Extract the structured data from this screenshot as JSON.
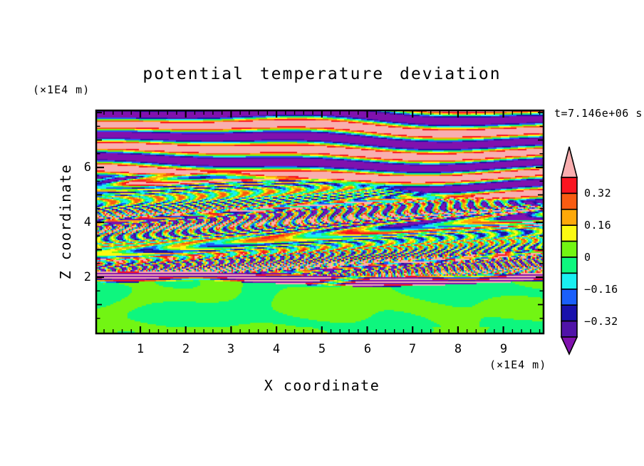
{
  "chart_data": {
    "type": "heatmap",
    "title": "potential temperature deviation",
    "xlabel": "X coordinate",
    "ylabel": "Z coordinate",
    "x_units_label": "(×1E4 m)",
    "y_units_label": "(×1E4 m)",
    "time_annotation": "t=7.146e+06 s",
    "xlim": [
      0,
      9.9
    ],
    "ylim": [
      0,
      8.1
    ],
    "x_major_ticks": [
      1,
      2,
      3,
      4,
      5,
      6,
      7,
      8,
      9
    ],
    "x_minor_step": 0.2,
    "y_major_ticks": [
      2,
      4,
      6
    ],
    "y_minor_step": 0.5,
    "grid": false,
    "legend_position": "right-colorbar",
    "colorbar": {
      "orientation": "vertical",
      "levels": [
        -0.4,
        -0.32,
        -0.24,
        -0.16,
        -0.08,
        0,
        0.08,
        0.16,
        0.24,
        0.32,
        0.4
      ],
      "segment_colors_low_to_high": [
        "#5013A8",
        "#1911AC",
        "#1A5FFA",
        "#19EFF1",
        "#0EF67E",
        "#72F513",
        "#FCFA12",
        "#FDA80A",
        "#F85C12",
        "#FA1520"
      ],
      "under_color": "#8011AE",
      "over_color": "#F9AEAF",
      "tick_values": [
        0.32,
        0.16,
        0,
        -0.16,
        -0.32
      ],
      "tick_labels": [
        "0.32",
        "0.16",
        "0",
        "−0.16",
        "−0.32"
      ]
    },
    "field_regions": [
      {
        "name": "lower-mixed-layer",
        "z_range": [
          0,
          1.8
        ],
        "value_range": [
          -0.08,
          0.08
        ],
        "description": "smooth swirling blobs of the two green shades (deviation near zero)"
      },
      {
        "name": "inversion-striation-band",
        "z_range": [
          1.8,
          2.15
        ],
        "value_range": [
          -0.45,
          0.45
        ],
        "description": "very thin intense stripes spanning the full color range"
      },
      {
        "name": "turbulent-interior",
        "z_range": [
          2.15,
          5.3
        ],
        "value_range": [
          -0.45,
          0.45
        ],
        "description": "fine horizontal turbulent streaks of all colors"
      },
      {
        "name": "stratified-wave-layer",
        "z_range": [
          5.3,
          8.1
        ],
        "value_range": [
          -0.6,
          0.6
        ],
        "description": "thick alternating pink/purple wave bands saturating beyond ±0.4 with thin rainbow transitions"
      }
    ]
  },
  "axes": {
    "x": {
      "tick_labels": [
        "1",
        "2",
        "3",
        "4",
        "5",
        "6",
        "7",
        "8",
        "9"
      ]
    },
    "y": {
      "tick_labels": [
        "6",
        "4",
        "2"
      ]
    }
  }
}
